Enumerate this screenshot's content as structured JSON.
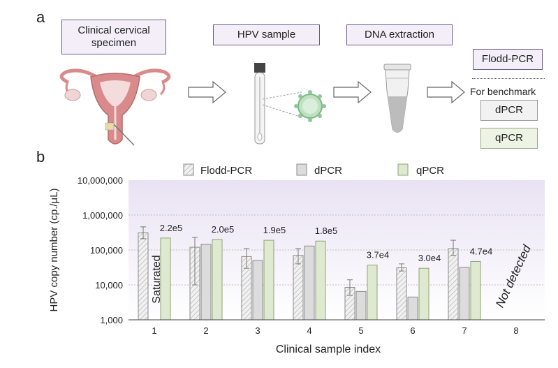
{
  "panel_a": {
    "letter": "a",
    "steps": [
      "Clinical cervical specimen",
      "HPV sample",
      "DNA extraction"
    ],
    "step_line1": "Clinical cervical",
    "step_line2": "specimen",
    "outputs": {
      "main": "Flodd-PCR",
      "benchmark_label": "For benchmark",
      "benchmark_methods": [
        "dPCR",
        "qPCR"
      ]
    }
  },
  "panel_b": {
    "letter": "b"
  },
  "chart_data": {
    "type": "bar",
    "xlabel": "Clinical sample index",
    "ylabel": "HPV copy number (cp./μL)",
    "yscale": "log",
    "ylim": [
      1000,
      10000000
    ],
    "yticks": [
      "1,000",
      "10,000",
      "100,000",
      "1,000,000",
      "10,000,000"
    ],
    "categories": [
      "1",
      "2",
      "3",
      "4",
      "5",
      "6",
      "7",
      "8"
    ],
    "legend_position": "top",
    "series": [
      {
        "name": "Flodd-PCR",
        "pattern": "hatched",
        "color": "#e9e9e9",
        "values": [
          310000,
          120000,
          65000,
          70000,
          8500,
          31000,
          110000,
          null
        ],
        "error_low": [
          210000,
          10000,
          30000,
          40000,
          5000,
          25000,
          70000,
          null
        ],
        "error_high": [
          460000,
          230000,
          110000,
          110000,
          14000,
          40000,
          190000,
          null
        ]
      },
      {
        "name": "dPCR",
        "pattern": "solid",
        "color": "#dcdcdc",
        "values": [
          null,
          145000,
          50000,
          130000,
          6500,
          4500,
          32000,
          null
        ]
      },
      {
        "name": "qPCR",
        "pattern": "solid",
        "color": "#dfe9cf",
        "values": [
          220000,
          200000,
          190000,
          180000,
          37000,
          30000,
          47000,
          null
        ]
      }
    ],
    "qpcr_labels": [
      "2.2e5",
      "2.0e5",
      "1.9e5",
      "1.8e5",
      "3.7e4",
      "3.0e4",
      "4.7e4",
      null
    ],
    "annotations": {
      "saturated": "Saturated",
      "not_detected": "Not detected"
    },
    "colors": {
      "flodd_border": "#8a8a8a",
      "dpcr_border": "#8a8a8a",
      "qpcr_border": "#8fa178",
      "plot_bg_top": "#ebe5f4"
    }
  }
}
